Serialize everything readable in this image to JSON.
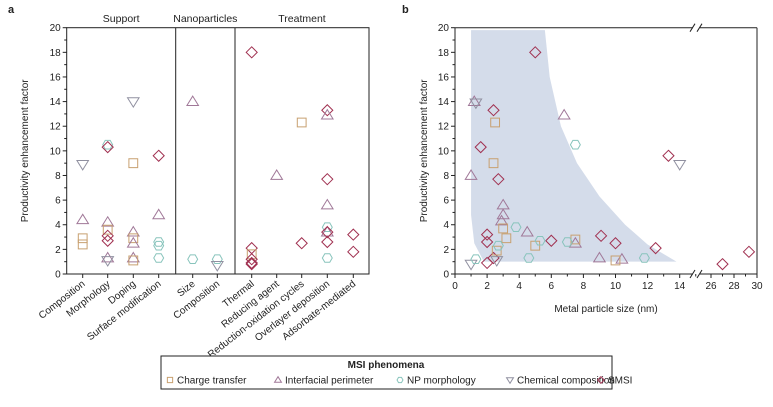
{
  "chart_data": [
    {
      "type": "scatter",
      "panel_label": "a",
      "ylabel": "Productivity enhancement factor",
      "ylim": [
        0,
        20
      ],
      "yticks": [
        "0",
        "2",
        "4",
        "6",
        "8",
        "10",
        "12",
        "14",
        "16",
        "18",
        "20"
      ],
      "groups": [
        {
          "name": "Support",
          "categories": [
            "Composition",
            "Morphology",
            "Doping",
            "Surface modification"
          ]
        },
        {
          "name": "Nanoparticles",
          "categories": [
            "Size",
            "Composition"
          ]
        },
        {
          "name": "Treatment",
          "categories": [
            "Thermal",
            "Reducing agent",
            "Reduction-oxidation cycles",
            "Overlayer deposition",
            "Adsorbate-mediated"
          ]
        }
      ],
      "points": [
        {
          "cat": 0,
          "type": "chemical",
          "y": 8.9
        },
        {
          "cat": 0,
          "type": "interfacial",
          "y": 4.4
        },
        {
          "cat": 0,
          "type": "charge",
          "y": 2.9
        },
        {
          "cat": 0,
          "type": "charge",
          "y": 2.4
        },
        {
          "cat": 1,
          "type": "np",
          "y": 10.5
        },
        {
          "cat": 1,
          "type": "smsi",
          "y": 10.3
        },
        {
          "cat": 1,
          "type": "interfacial",
          "y": 4.2
        },
        {
          "cat": 1,
          "type": "charge",
          "y": 3.6
        },
        {
          "cat": 1,
          "type": "smsi",
          "y": 3.1
        },
        {
          "cat": 1,
          "type": "smsi",
          "y": 2.7
        },
        {
          "cat": 1,
          "type": "interfacial",
          "y": 1.3
        },
        {
          "cat": 1,
          "type": "chemical",
          "y": 1.1
        },
        {
          "cat": 2,
          "type": "chemical",
          "y": 14
        },
        {
          "cat": 2,
          "type": "charge",
          "y": 9
        },
        {
          "cat": 2,
          "type": "interfacial",
          "y": 3.4
        },
        {
          "cat": 2,
          "type": "charge",
          "y": 2.9
        },
        {
          "cat": 2,
          "type": "interfacial",
          "y": 2.5
        },
        {
          "cat": 2,
          "type": "interfacial",
          "y": 1.3
        },
        {
          "cat": 2,
          "type": "charge",
          "y": 1.1
        },
        {
          "cat": 3,
          "type": "smsi",
          "y": 9.6
        },
        {
          "cat": 3,
          "type": "interfacial",
          "y": 4.8
        },
        {
          "cat": 3,
          "type": "np",
          "y": 2.6
        },
        {
          "cat": 3,
          "type": "np",
          "y": 2.3
        },
        {
          "cat": 3,
          "type": "np",
          "y": 1.3
        },
        {
          "cat": 4,
          "type": "interfacial",
          "y": 14
        },
        {
          "cat": 4,
          "type": "np",
          "y": 1.2
        },
        {
          "cat": 5,
          "type": "np",
          "y": 1.2
        },
        {
          "cat": 5,
          "type": "chemical",
          "y": 0.7
        },
        {
          "cat": 6,
          "type": "smsi",
          "y": 18
        },
        {
          "cat": 6,
          "type": "smsi",
          "y": 2.1
        },
        {
          "cat": 6,
          "type": "charge",
          "y": 1.6
        },
        {
          "cat": 6,
          "type": "smsi",
          "y": 1.2
        },
        {
          "cat": 6,
          "type": "smsi",
          "y": 0.9
        },
        {
          "cat": 6,
          "type": "smsi",
          "y": 0.8
        },
        {
          "cat": 7,
          "type": "interfacial",
          "y": 8
        },
        {
          "cat": 8,
          "type": "charge",
          "y": 12.3
        },
        {
          "cat": 8,
          "type": "smsi",
          "y": 2.5
        },
        {
          "cat": 9,
          "type": "smsi",
          "y": 13.3
        },
        {
          "cat": 9,
          "type": "interfacial",
          "y": 12.9
        },
        {
          "cat": 9,
          "type": "smsi",
          "y": 7.7
        },
        {
          "cat": 9,
          "type": "interfacial",
          "y": 5.6
        },
        {
          "cat": 9,
          "type": "np",
          "y": 3.8
        },
        {
          "cat": 9,
          "type": "interfacial",
          "y": 3.4
        },
        {
          "cat": 9,
          "type": "smsi",
          "y": 3.4
        },
        {
          "cat": 9,
          "type": "smsi",
          "y": 2.6
        },
        {
          "cat": 9,
          "type": "np",
          "y": 1.3
        },
        {
          "cat": 10,
          "type": "smsi",
          "y": 3.2
        },
        {
          "cat": 10,
          "type": "smsi",
          "y": 1.8
        }
      ]
    },
    {
      "type": "scatter",
      "panel_label": "b",
      "xlabel": "Metal particle size (nm)",
      "ylabel": "Productivity enhancement factor",
      "ylim": [
        0,
        20
      ],
      "xlim_segments": [
        [
          0,
          15
        ],
        [
          25.5,
          30
        ]
      ],
      "xticks": [
        "0",
        "2",
        "4",
        "6",
        "8",
        "10",
        "12",
        "14",
        "26",
        "28",
        "30"
      ],
      "yticks": [
        "0",
        "2",
        "4",
        "6",
        "8",
        "10",
        "12",
        "14",
        "16",
        "18",
        "20"
      ],
      "shaded_region": [
        [
          1,
          19.8
        ],
        [
          5.6,
          19.8
        ],
        [
          5.9,
          16
        ],
        [
          6.6,
          12
        ],
        [
          7.6,
          9
        ],
        [
          9,
          6.3
        ],
        [
          10.6,
          4
        ],
        [
          12,
          2.4
        ],
        [
          13.8,
          1
        ],
        [
          1.8,
          1
        ],
        [
          1.2,
          2.5
        ],
        [
          1,
          4.8
        ]
      ],
      "points": [
        {
          "x": 5,
          "y": 18,
          "type": "smsi"
        },
        {
          "x": 2.4,
          "y": 13.3,
          "type": "smsi"
        },
        {
          "x": 1.6,
          "y": 10.3,
          "type": "smsi"
        },
        {
          "x": 2.7,
          "y": 7.7,
          "type": "smsi"
        },
        {
          "x": 2,
          "y": 3.2,
          "type": "smsi"
        },
        {
          "x": 2,
          "y": 2.6,
          "type": "smsi"
        },
        {
          "x": 6,
          "y": 2.7,
          "type": "smsi"
        },
        {
          "x": 9.1,
          "y": 3.1,
          "type": "smsi"
        },
        {
          "x": 10,
          "y": 2.5,
          "type": "smsi"
        },
        {
          "x": 12.5,
          "y": 2.1,
          "type": "smsi"
        },
        {
          "x": 13.3,
          "y": 9.6,
          "type": "smsi"
        },
        {
          "x": 2,
          "y": 0.9,
          "type": "smsi"
        },
        {
          "x": 2.4,
          "y": 1.3,
          "type": "smsi"
        },
        {
          "x": 27,
          "y": 0.8,
          "type": "smsi"
        },
        {
          "x": 29.3,
          "y": 1.8,
          "type": "smsi"
        },
        {
          "x": 1.2,
          "y": 14,
          "type": "interfacial"
        },
        {
          "x": 6.8,
          "y": 12.9,
          "type": "interfacial"
        },
        {
          "x": 1,
          "y": 8,
          "type": "interfacial"
        },
        {
          "x": 3,
          "y": 5.6,
          "type": "interfacial"
        },
        {
          "x": 3,
          "y": 4.8,
          "type": "interfacial"
        },
        {
          "x": 2.9,
          "y": 4.3,
          "type": "interfacial"
        },
        {
          "x": 4.5,
          "y": 3.4,
          "type": "interfacial"
        },
        {
          "x": 7.5,
          "y": 2.5,
          "type": "interfacial"
        },
        {
          "x": 9,
          "y": 1.3,
          "type": "interfacial"
        },
        {
          "x": 10.4,
          "y": 1.2,
          "type": "interfacial"
        },
        {
          "x": 1.3,
          "y": 13.9,
          "type": "chemical"
        },
        {
          "x": 14,
          "y": 8.9,
          "type": "chemical"
        },
        {
          "x": 1,
          "y": 0.8,
          "type": "chemical"
        },
        {
          "x": 2.6,
          "y": 1.1,
          "type": "chemical"
        },
        {
          "x": 2.5,
          "y": 12.3,
          "type": "charge"
        },
        {
          "x": 2.4,
          "y": 9,
          "type": "charge"
        },
        {
          "x": 3,
          "y": 3.7,
          "type": "charge"
        },
        {
          "x": 3.2,
          "y": 2.9,
          "type": "charge"
        },
        {
          "x": 5,
          "y": 2.3,
          "type": "charge"
        },
        {
          "x": 7.5,
          "y": 2.8,
          "type": "charge"
        },
        {
          "x": 10,
          "y": 1.1,
          "type": "charge"
        },
        {
          "x": 2.6,
          "y": 1.9,
          "type": "charge"
        },
        {
          "x": 7.5,
          "y": 10.5,
          "type": "np"
        },
        {
          "x": 3.8,
          "y": 3.8,
          "type": "np"
        },
        {
          "x": 5.3,
          "y": 2.7,
          "type": "np"
        },
        {
          "x": 7,
          "y": 2.6,
          "type": "np"
        },
        {
          "x": 4.6,
          "y": 1.3,
          "type": "np"
        },
        {
          "x": 11.8,
          "y": 1.3,
          "type": "np"
        },
        {
          "x": 1.3,
          "y": 1.2,
          "type": "np"
        },
        {
          "x": 2.7,
          "y": 2.3,
          "type": "np"
        }
      ]
    }
  ],
  "legend": {
    "title": "MSI phenomena",
    "placement": "bottom-center",
    "items": [
      {
        "key": "charge",
        "label": "Charge transfer",
        "shape": "square",
        "color": "#c8a070"
      },
      {
        "key": "interfacial",
        "label": "Interfacial perimeter",
        "shape": "triangle-up",
        "color": "#a07898"
      },
      {
        "key": "np",
        "label": "NP morphology",
        "shape": "hexagon",
        "color": "#88c4bc"
      },
      {
        "key": "chemical",
        "label": "Chemical composition",
        "shape": "triangle-down",
        "color": "#9090a0"
      },
      {
        "key": "smsi",
        "label": "SMSI",
        "shape": "diamond",
        "color": "#a03050"
      }
    ]
  },
  "colors": {
    "shade": "#d4dcea",
    "axis": "#222222"
  }
}
